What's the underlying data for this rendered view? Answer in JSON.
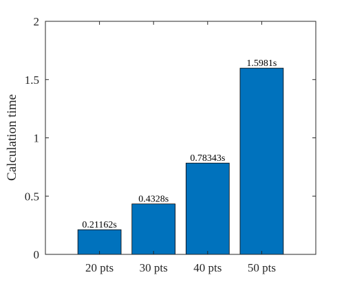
{
  "chart_data": {
    "type": "bar",
    "title": "",
    "xlabel": "",
    "ylabel": "Calculation time",
    "categories": [
      "20 pts",
      "30 pts",
      "40 pts",
      "50 pts"
    ],
    "values": [
      0.21162,
      0.4328,
      0.78343,
      1.5981
    ],
    "data_labels": [
      "0.21162s",
      "0.4328s",
      "0.78343s",
      "1.5981s"
    ],
    "ylim": [
      0,
      2
    ],
    "xlim": [
      0,
      5
    ],
    "yticks": [
      0,
      0.5,
      1,
      1.5,
      2
    ],
    "ytick_labels": [
      "0",
      "0.5",
      "1",
      "1.5",
      "2"
    ],
    "grid": false,
    "bar_color": "#0072BD",
    "bar_edge_color": "#000000",
    "axis_color": "#262626"
  }
}
